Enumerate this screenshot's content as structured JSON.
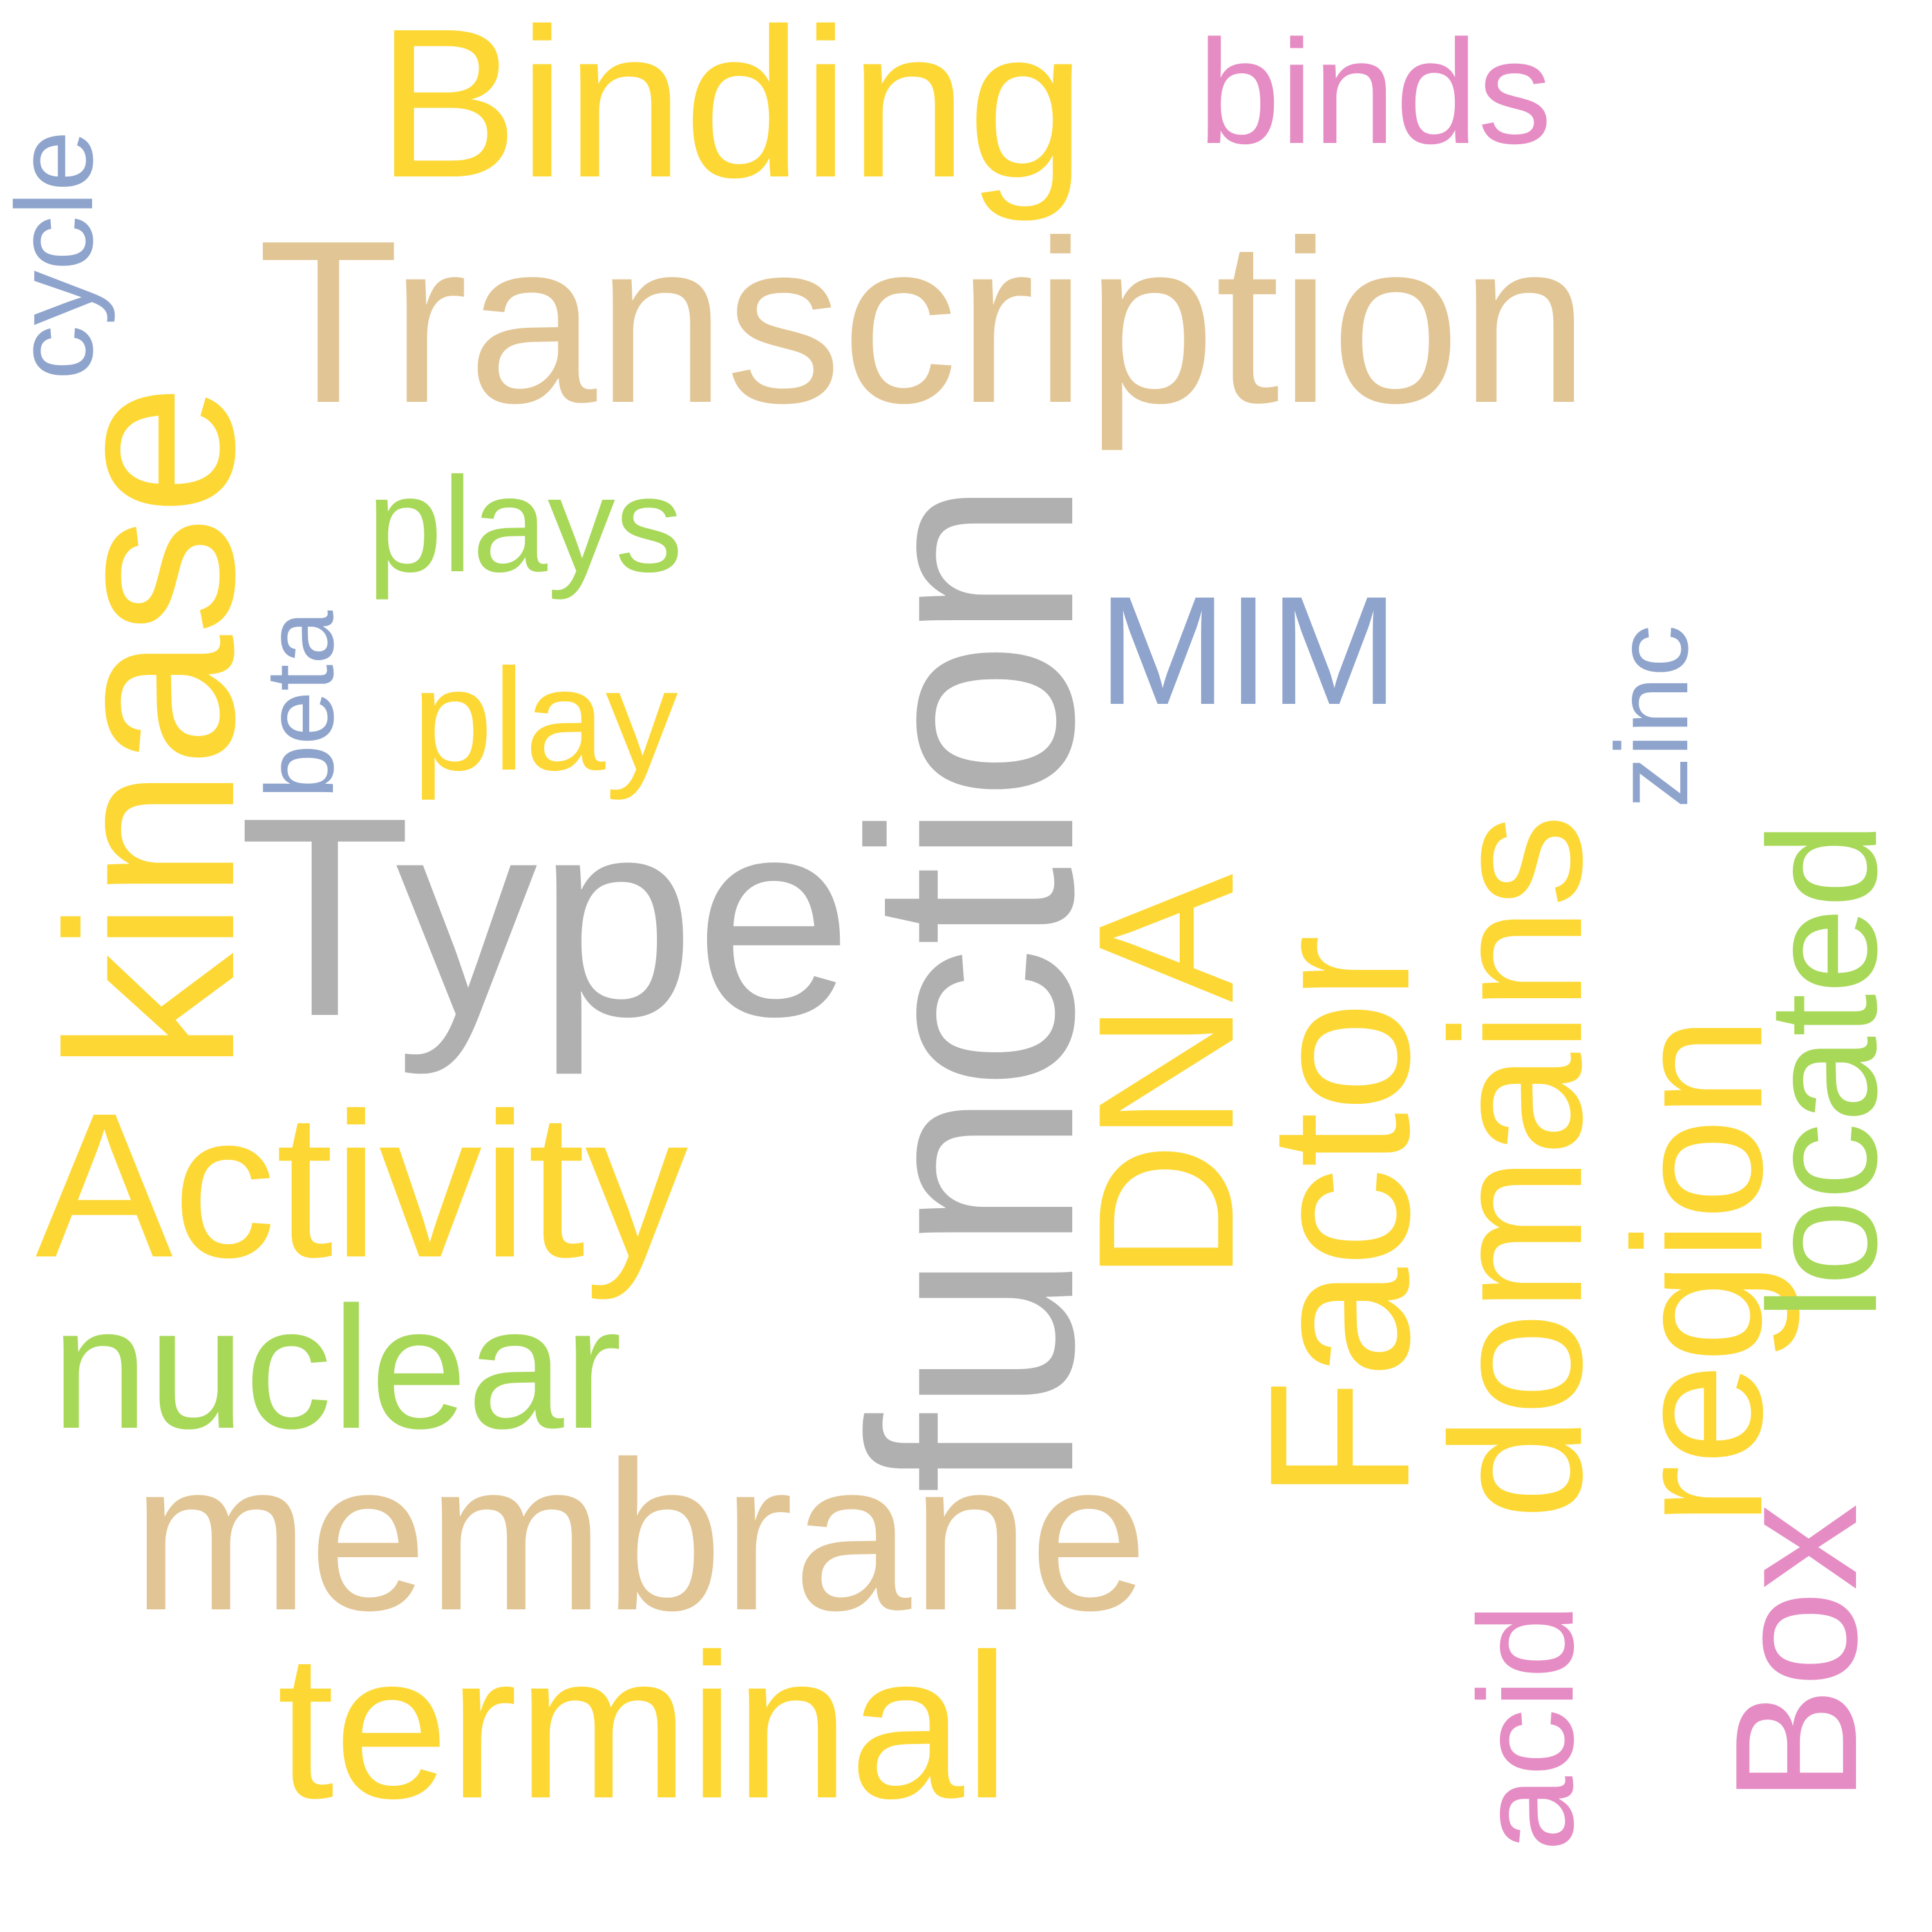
{
  "colors": {
    "gold": "#FDD835",
    "tan": "#E2C594",
    "grey": "#B0B0B0",
    "green": "#A8D858",
    "blue": "#8FA4CC",
    "pink": "#E68CC4"
  },
  "words": [
    {
      "id": "binding",
      "text": "Binding",
      "color": "gold"
    },
    {
      "id": "binds",
      "text": "binds",
      "color": "pink"
    },
    {
      "id": "transcription",
      "text": "Transcription",
      "color": "tan"
    },
    {
      "id": "cycle",
      "text": "cycle",
      "color": "blue"
    },
    {
      "id": "kinase",
      "text": "kinase",
      "color": "gold"
    },
    {
      "id": "beta",
      "text": "beta",
      "color": "blue"
    },
    {
      "id": "plays",
      "text": "plays",
      "color": "green"
    },
    {
      "id": "play",
      "text": "play",
      "color": "gold"
    },
    {
      "id": "type",
      "text": "Type",
      "color": "grey"
    },
    {
      "id": "function",
      "text": "function",
      "color": "grey"
    },
    {
      "id": "mim",
      "text": "MIM",
      "color": "blue"
    },
    {
      "id": "dna",
      "text": "DNA",
      "color": "gold"
    },
    {
      "id": "factor",
      "text": "Factor",
      "color": "gold"
    },
    {
      "id": "domains",
      "text": "domains",
      "color": "gold"
    },
    {
      "id": "zinc",
      "text": "zinc",
      "color": "blue"
    },
    {
      "id": "region",
      "text": "region",
      "color": "gold"
    },
    {
      "id": "located",
      "text": "located",
      "color": "green"
    },
    {
      "id": "activity",
      "text": "Activity",
      "color": "gold"
    },
    {
      "id": "nuclear",
      "text": "nuclear",
      "color": "green"
    },
    {
      "id": "membrane",
      "text": "membrane",
      "color": "tan"
    },
    {
      "id": "terminal",
      "text": "terminal",
      "color": "gold"
    },
    {
      "id": "acid",
      "text": "acid",
      "color": "pink"
    },
    {
      "id": "box",
      "text": "Box",
      "color": "pink"
    }
  ]
}
